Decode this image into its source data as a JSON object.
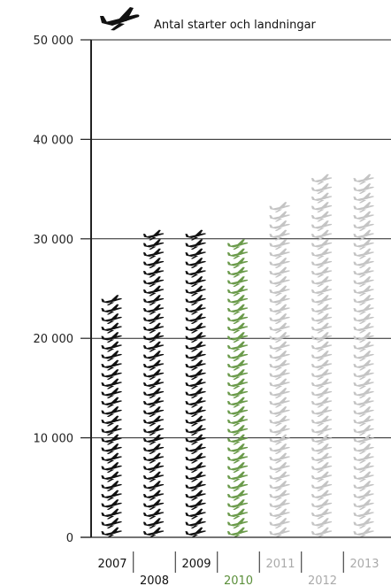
{
  "chart_data": {
    "type": "bar",
    "title": "Antal starter och landningar",
    "title_icon": "airplane-icon",
    "categories": [
      "2007",
      "2008",
      "2009",
      "2010",
      "2011",
      "2012",
      "2013"
    ],
    "values": [
      24000,
      31000,
      31000,
      30000,
      34000,
      36000,
      36800
    ],
    "ylim": [
      0,
      50000
    ],
    "yticks": [
      0,
      10000,
      20000,
      30000,
      40000,
      50000
    ],
    "ytick_labels": [
      "0",
      "10 000",
      "20 000",
      "30 000",
      "40 000",
      "50 000"
    ],
    "grid": true,
    "colors": {
      "actual": "#111111",
      "current": "#6a9a4a",
      "forecast": "#c4c4c4"
    },
    "category_styles": [
      "actual",
      "actual",
      "actual",
      "current",
      "forecast",
      "forecast",
      "forecast"
    ]
  }
}
